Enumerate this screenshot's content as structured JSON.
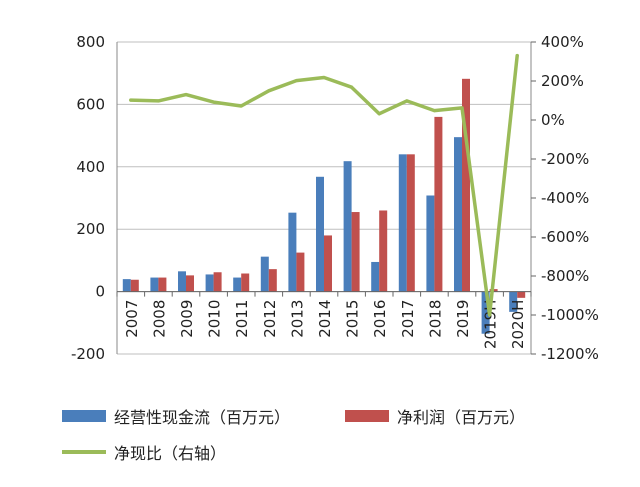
{
  "chart_data": {
    "type": "bar+line",
    "categories": [
      "2007",
      "2008",
      "2009",
      "2010",
      "2011",
      "2012",
      "2013",
      "2014",
      "2015",
      "2016",
      "2017",
      "2018",
      "2019",
      "2019H",
      "2020H"
    ],
    "series": [
      {
        "name": "经营性现金流（百万元）",
        "axis": "left",
        "type": "bar",
        "color": "#4a7ebb",
        "values": [
          40,
          45,
          65,
          55,
          45,
          112,
          253,
          368,
          418,
          95,
          440,
          308,
          495,
          -135,
          -65
        ]
      },
      {
        "name": "净利润（百万元）",
        "axis": "left",
        "type": "bar",
        "color": "#c0504d",
        "values": [
          38,
          45,
          52,
          62,
          58,
          72,
          125,
          180,
          255,
          260,
          440,
          560,
          682,
          8,
          -20
        ]
      },
      {
        "name": "净现比（右轴）",
        "axis": "right",
        "type": "line",
        "color": "#9bbb59",
        "values": [
          102,
          98,
          130,
          92,
          72,
          150,
          202,
          218,
          168,
          32,
          98,
          48,
          62,
          -1000,
          330
        ]
      }
    ],
    "left_axis": {
      "min": -200,
      "max": 800,
      "step": 200,
      "ticks": [
        "-200",
        "0",
        "200",
        "400",
        "600",
        "800"
      ]
    },
    "right_axis": {
      "min": -1200,
      "max": 400,
      "step": 200,
      "ticks": [
        "-1200%",
        "-1000%",
        "-800%",
        "-600%",
        "-400%",
        "-200%",
        "0%",
        "200%",
        "400%"
      ]
    },
    "legend": {
      "cash_flow": "经营性现金流（百万元）",
      "net_profit": "净利润（百万元）",
      "ratio": "净现比（右轴）"
    }
  }
}
